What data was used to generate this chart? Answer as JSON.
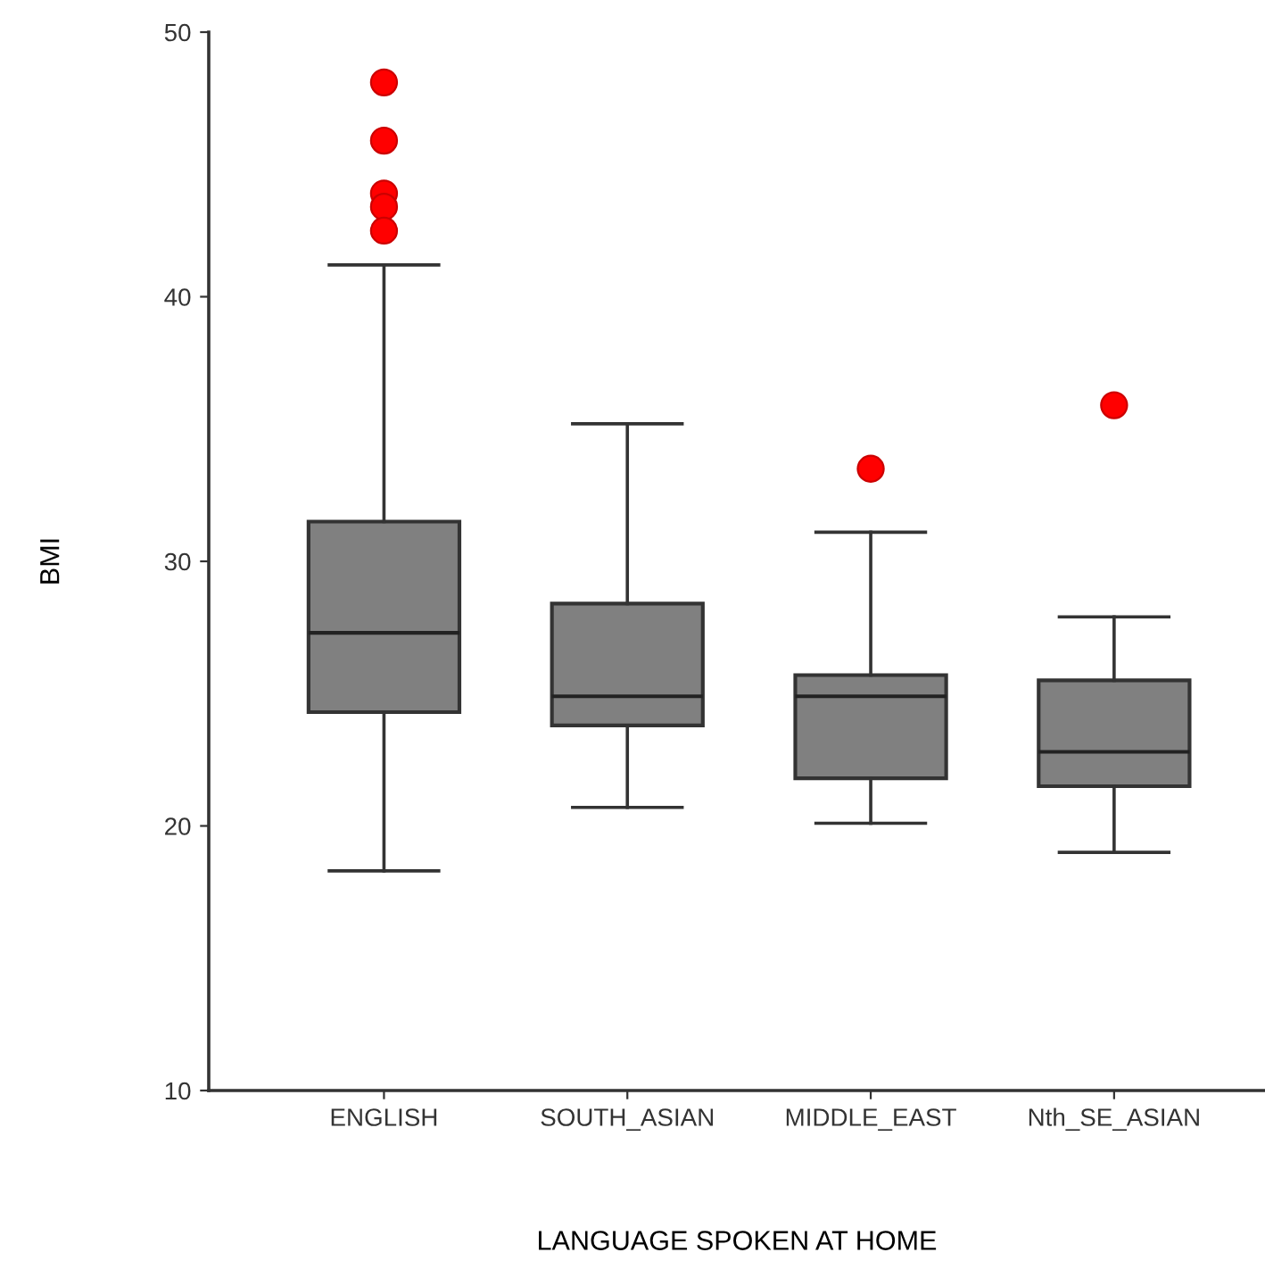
{
  "chart_data": {
    "type": "box",
    "xlabel": "LANGUAGE SPOKEN AT HOME",
    "ylabel": "BMI",
    "categories": [
      "ENGLISH",
      "SOUTH_ASIAN",
      "MIDDLE_EAST",
      "Nth_SE_ASIAN"
    ],
    "color": "#808080",
    "boxes": [
      {
        "low": 18.3,
        "q1": 24.3,
        "median": 27.3,
        "q3": 31.5,
        "high": 41.2
      },
      {
        "low": 20.7,
        "q1": 23.8,
        "median": 24.9,
        "q3": 28.4,
        "high": 35.2
      },
      {
        "low": 20.1,
        "q1": 21.8,
        "median": 24.9,
        "q3": 25.7,
        "high": 31.1
      },
      {
        "low": 19.0,
        "q1": 21.5,
        "median": 22.8,
        "q3": 25.5,
        "high": 27.9
      }
    ],
    "series": [
      {
        "type": "scatter",
        "color": "#ff0000",
        "marker": "circle",
        "x": [
          "ENGLISH",
          "ENGLISH",
          "ENGLISH",
          "ENGLISH",
          "ENGLISH",
          "ENGLISH",
          "MIDDLE_EAST",
          "Nth_SE_ASIAN"
        ],
        "values": [
          48.1,
          45.9,
          43.9,
          43.4,
          null,
          42.5,
          33.5,
          35.9
        ]
      }
    ],
    "ylim": [
      10,
      50
    ],
    "yticks": [
      10,
      20,
      30,
      40,
      50
    ],
    "grid": false,
    "legend": false
  }
}
